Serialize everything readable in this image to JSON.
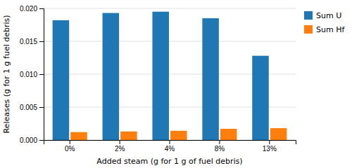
{
  "chart_data": {
    "type": "bar",
    "xlabel": "Added steam (g for 1 g of fuel debris)",
    "ylabel": "Releases (g for 1 g fuel debris)",
    "categories": [
      "0%",
      "2%",
      "4%",
      "8%",
      "13%"
    ],
    "series": [
      {
        "name": "Sum U",
        "values": [
          0.0182,
          0.0193,
          0.0195,
          0.0185,
          0.0128
        ]
      },
      {
        "name": "Sum Hf",
        "values": [
          0.0012,
          0.0013,
          0.0014,
          0.0017,
          0.0018
        ]
      }
    ],
    "ylim": [
      0.0,
      0.02
    ],
    "yticks": [
      {
        "value": 0.0,
        "label": "0.000"
      },
      0.005,
      {
        "value": 0.01,
        "label": "0.010"
      },
      0.015,
      {
        "value": 0.02,
        "label": "0.020"
      }
    ],
    "grid": true,
    "legend": "right"
  }
}
